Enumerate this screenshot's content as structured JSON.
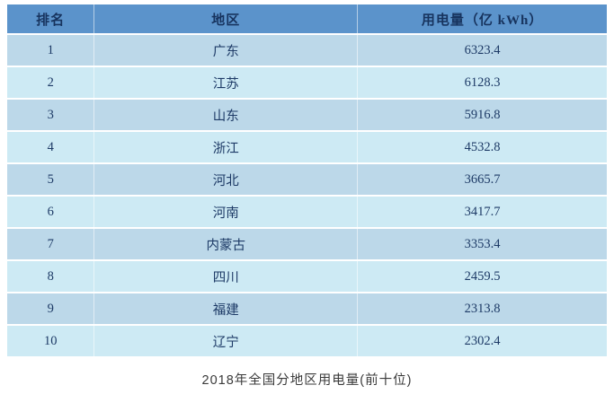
{
  "chart_data": {
    "type": "table",
    "title": "2018年全国分地区用电量(前十位)",
    "columns": [
      "排名",
      "地区",
      "用电量（亿 kWh）"
    ],
    "unit": "亿 kWh",
    "rows": [
      [
        "1",
        "广东",
        "6323.4"
      ],
      [
        "2",
        "江苏",
        "6128.3"
      ],
      [
        "3",
        "山东",
        "5916.8"
      ],
      [
        "4",
        "浙江",
        "4532.8"
      ],
      [
        "5",
        "河北",
        "3665.7"
      ],
      [
        "6",
        "河南",
        "3417.7"
      ],
      [
        "7",
        "内蒙古",
        "3353.4"
      ],
      [
        "8",
        "四川",
        "2459.5"
      ],
      [
        "9",
        "福建",
        "2313.8"
      ],
      [
        "10",
        "辽宁",
        "2302.4"
      ]
    ]
  },
  "caption": "2018年全国分地区用电量(前十位)",
  "colors": {
    "header_bg": "#5b93cb",
    "header_text": "#17335e",
    "row_odd_bg": "#bcd8e9",
    "row_even_bg": "#cdeaf4",
    "cell_text": "#1d3a66",
    "caption_text": "#3a3a3a",
    "page_bg": "#ffffff"
  }
}
